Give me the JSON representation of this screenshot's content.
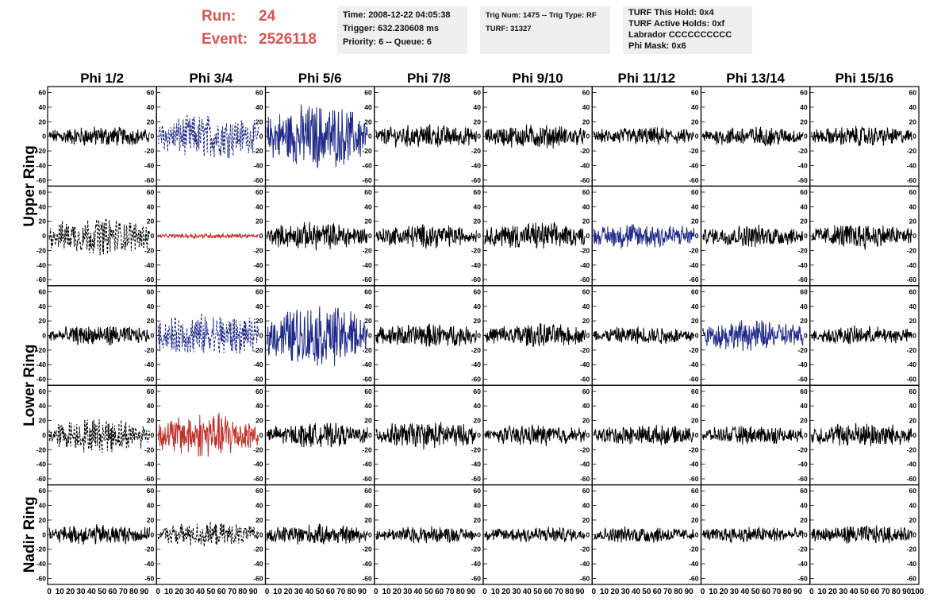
{
  "header": {
    "run_label": "Run:",
    "run_value": "24",
    "event_label": "Event:",
    "event_value": "2526118",
    "info_box_1": [
      "Time: 2008-12-22 04:05:38",
      "Trigger: 632.230608 ms",
      "Priority: 6 -- Queue: 6"
    ],
    "info_box_2": [
      "Trig Num: 1475 -- Trig Type: RF",
      "",
      "TURF: 31327"
    ],
    "info_box_3": [
      "TURF This Hold: 0x4",
      "TURF Active Holds: 0xf",
      "Labrador CCCCCCCCCC",
      "Phi Mask: 0x6"
    ],
    "colors": {
      "run_text": "#d9534f",
      "box_bg": "#efefef"
    }
  },
  "chart_data": {
    "type": "line",
    "layout": "grid",
    "columns": [
      "Phi 1/2",
      "Phi 3/4",
      "Phi 5/6",
      "Phi 7/8",
      "Phi 9/10",
      "Phi 11/12",
      "Phi 13/14",
      "Phi 15/16"
    ],
    "rings": [
      {
        "name": "Upper Ring",
        "rows": 2
      },
      {
        "name": "Lower Ring",
        "rows": 2
      },
      {
        "name": "Nadir Ring",
        "rows": 1
      }
    ],
    "xlim": [
      0,
      100
    ],
    "ylim": [
      -65,
      65
    ],
    "x_ticks": [
      "0",
      "10",
      "20",
      "30",
      "40",
      "50",
      "60",
      "70",
      "80",
      "90",
      "100"
    ],
    "y_ticks": [
      "60",
      "40",
      "20",
      "0",
      "-20",
      "-40",
      "-60"
    ],
    "colors": {
      "normal": "#000000",
      "blue": "#1f2a8a",
      "red": "#c0322b"
    },
    "panels": [
      [
        {
          "color": "normal",
          "style": "solid",
          "amp": 12
        },
        {
          "color": "blue",
          "style": "dashed",
          "amp": 26
        },
        {
          "color": "blue",
          "style": "solid",
          "amp": 38
        },
        {
          "color": "normal",
          "style": "solid",
          "amp": 14
        },
        {
          "color": "normal",
          "style": "solid",
          "amp": 14
        },
        {
          "color": "normal",
          "style": "solid",
          "amp": 11
        },
        {
          "color": "normal",
          "style": "solid",
          "amp": 12
        },
        {
          "color": "normal",
          "style": "solid",
          "amp": 12
        }
      ],
      [
        {
          "color": "normal",
          "style": "dashed",
          "amp": 22
        },
        {
          "color": "red",
          "style": "solid",
          "amp": 3
        },
        {
          "color": "normal",
          "style": "solid",
          "amp": 16
        },
        {
          "color": "normal",
          "style": "solid",
          "amp": 14
        },
        {
          "color": "normal",
          "style": "solid",
          "amp": 16
        },
        {
          "color": "blue",
          "style": "solid",
          "amp": 16
        },
        {
          "color": "normal",
          "style": "solid",
          "amp": 13
        },
        {
          "color": "normal",
          "style": "solid",
          "amp": 15
        }
      ],
      [
        {
          "color": "normal",
          "style": "solid",
          "amp": 12
        },
        {
          "color": "blue",
          "style": "dashed",
          "amp": 26
        },
        {
          "color": "blue",
          "style": "solid",
          "amp": 36
        },
        {
          "color": "normal",
          "style": "solid",
          "amp": 14
        },
        {
          "color": "normal",
          "style": "solid",
          "amp": 14
        },
        {
          "color": "normal",
          "style": "solid",
          "amp": 11
        },
        {
          "color": "blue",
          "style": "solid",
          "amp": 18
        },
        {
          "color": "normal",
          "style": "solid",
          "amp": 11
        }
      ],
      [
        {
          "color": "normal",
          "style": "dashed",
          "amp": 20
        },
        {
          "color": "red",
          "style": "solid",
          "amp": 26
        },
        {
          "color": "normal",
          "style": "solid",
          "amp": 14
        },
        {
          "color": "normal",
          "style": "solid",
          "amp": 16
        },
        {
          "color": "normal",
          "style": "solid",
          "amp": 12
        },
        {
          "color": "normal",
          "style": "solid",
          "amp": 12
        },
        {
          "color": "normal",
          "style": "solid",
          "amp": 11
        },
        {
          "color": "normal",
          "style": "solid",
          "amp": 15
        }
      ],
      [
        {
          "color": "normal",
          "style": "solid",
          "amp": 12
        },
        {
          "color": "normal",
          "style": "dashed",
          "amp": 14
        },
        {
          "color": "normal",
          "style": "solid",
          "amp": 12
        },
        {
          "color": "normal",
          "style": "solid",
          "amp": 10
        },
        {
          "color": "normal",
          "style": "solid",
          "amp": 10
        },
        {
          "color": "normal",
          "style": "solid",
          "amp": 10
        },
        {
          "color": "normal",
          "style": "solid",
          "amp": 10
        },
        {
          "color": "normal",
          "style": "solid",
          "amp": 11
        }
      ]
    ]
  }
}
